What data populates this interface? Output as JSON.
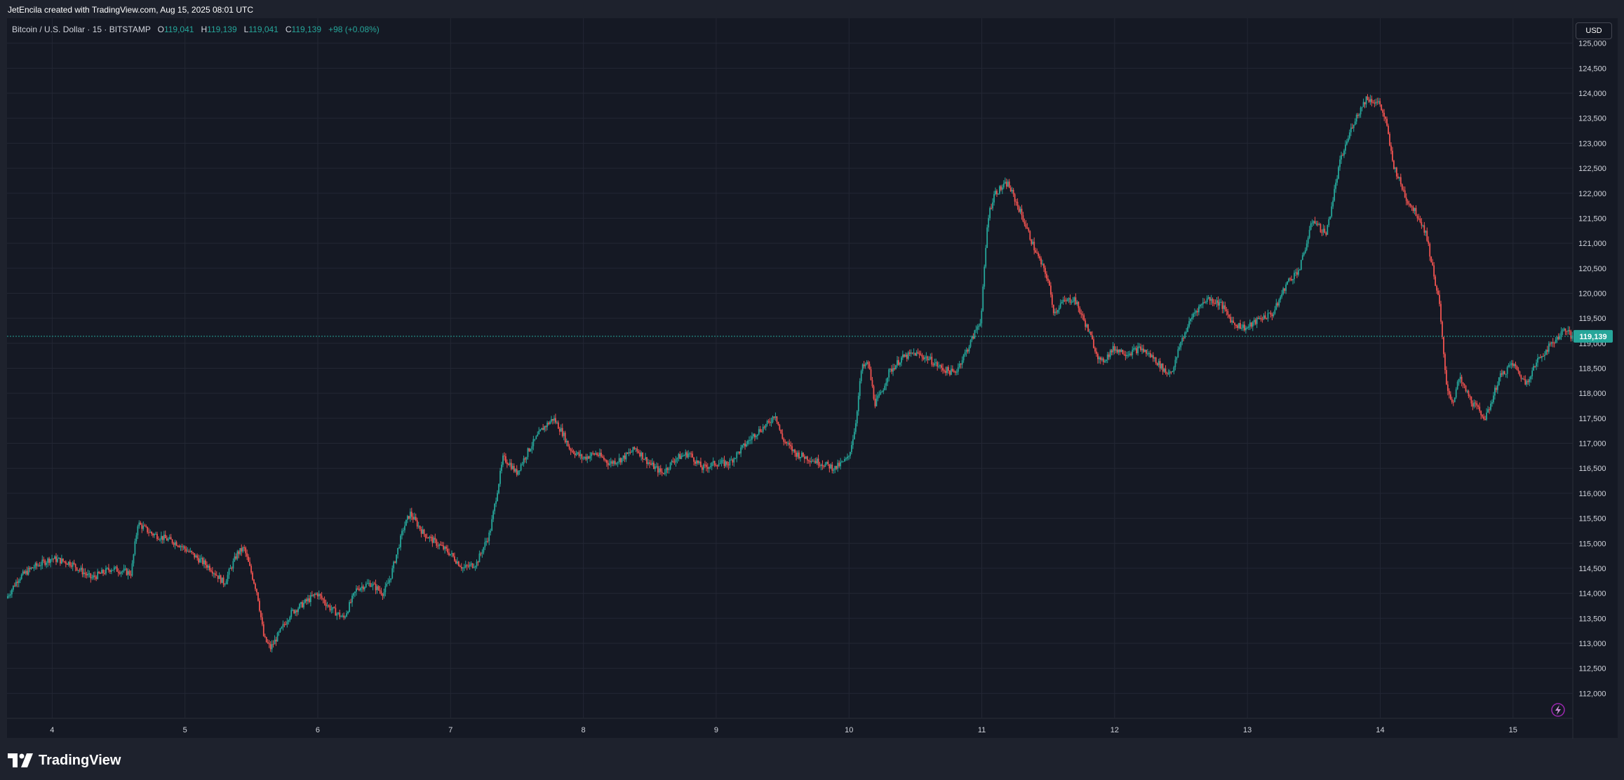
{
  "header": {
    "credit": "JetEncila created with TradingView.com, Aug 15, 2025 08:01 UTC"
  },
  "legend": {
    "symbol": "Bitcoin / U.S. Dollar · 15 · BITSTAMP",
    "o_label": "O",
    "o_value": "119,041",
    "h_label": "H",
    "h_value": "119,139",
    "l_label": "L",
    "l_value": "119,041",
    "c_label": "C",
    "c_value": "119,139",
    "change": "+98 (+0.08%)"
  },
  "currency_button": "USD",
  "price_tag": "119,139",
  "footer": {
    "brand": "TradingView"
  },
  "colors": {
    "up": "#26a69a",
    "down": "#ef5350",
    "background": "#151924",
    "grid": "#232734",
    "axis_text": "#d1d4dc"
  },
  "chart_data": {
    "type": "candlestick",
    "title": "Bitcoin / U.S. Dollar · 15 · BITSTAMP",
    "interval": "15",
    "exchange": "BITSTAMP",
    "ylim": [
      111500,
      125500
    ],
    "y_ticks": [
      112000,
      112500,
      113000,
      113500,
      114000,
      114500,
      115000,
      115500,
      116000,
      116500,
      117000,
      117500,
      118000,
      118500,
      119000,
      119500,
      120000,
      120500,
      121000,
      121500,
      122000,
      122500,
      123000,
      123500,
      124000,
      124500,
      125000
    ],
    "y_tick_labels": [
      "112,000",
      "112,500",
      "113,000",
      "113,500",
      "114,000",
      "114,500",
      "115,000",
      "115,500",
      "116,000",
      "116,500",
      "117,000",
      "117,500",
      "118,000",
      "118,500",
      "119,000",
      "119,500",
      "120,000",
      "120,500",
      "121,000",
      "121,500",
      "122,000",
      "122,500",
      "123,000",
      "123,500",
      "124,000",
      "124,500",
      "125,000"
    ],
    "x_ticks": [
      "4",
      "5",
      "6",
      "7",
      "8",
      "9",
      "10",
      "11",
      "12",
      "13",
      "14",
      "15"
    ],
    "x_tick_days": [
      4,
      5,
      6,
      7,
      8,
      9,
      10,
      11,
      12,
      13,
      14,
      15
    ],
    "x_range_days": [
      3.66,
      15.45
    ],
    "last_price": 119139,
    "trend_path": {
      "x_days": [
        3.66,
        3.75,
        3.85,
        4.0,
        4.15,
        4.3,
        4.45,
        4.6,
        4.65,
        4.75,
        4.85,
        4.95,
        5.1,
        5.2,
        5.3,
        5.4,
        5.45,
        5.55,
        5.6,
        5.65,
        5.8,
        5.9,
        6.0,
        6.1,
        6.2,
        6.3,
        6.4,
        6.5,
        6.55,
        6.6,
        6.65,
        6.7,
        6.8,
        6.9,
        7.0,
        7.1,
        7.2,
        7.3,
        7.4,
        7.45,
        7.5,
        7.6,
        7.7,
        7.78,
        7.85,
        7.9,
        8.0,
        8.1,
        8.2,
        8.3,
        8.4,
        8.5,
        8.6,
        8.7,
        8.8,
        8.9,
        9.0,
        9.1,
        9.2,
        9.3,
        9.4,
        9.45,
        9.5,
        9.6,
        9.7,
        9.8,
        9.9,
        10.0,
        10.05,
        10.1,
        10.15,
        10.2,
        10.25,
        10.3,
        10.4,
        10.5,
        10.6,
        10.7,
        10.8,
        10.9,
        10.95,
        11.0,
        11.05,
        11.1,
        11.2,
        11.3,
        11.4,
        11.5,
        11.55,
        11.6,
        11.7,
        11.8,
        11.9,
        12.0,
        12.1,
        12.2,
        12.3,
        12.4,
        12.45,
        12.5,
        12.6,
        12.7,
        12.8,
        12.9,
        13.0,
        13.1,
        13.2,
        13.3,
        13.4,
        13.5,
        13.55,
        13.6,
        13.7,
        13.8,
        13.9,
        14.0,
        14.05,
        14.1,
        14.2,
        14.3,
        14.35,
        14.4,
        14.45,
        14.5,
        14.55,
        14.6,
        14.7,
        14.8,
        14.9,
        15.0,
        15.1,
        15.2,
        15.3,
        15.4,
        15.45
      ],
      "close": [
        113900,
        114300,
        114500,
        114700,
        114600,
        114300,
        114500,
        114400,
        115400,
        115200,
        115100,
        115000,
        114700,
        114500,
        114200,
        114800,
        114900,
        114000,
        113100,
        112900,
        113600,
        113800,
        114000,
        113700,
        113500,
        114100,
        114200,
        114000,
        114300,
        114800,
        115300,
        115600,
        115200,
        115000,
        114800,
        114500,
        114600,
        115200,
        116700,
        116600,
        116400,
        116900,
        117300,
        117500,
        117200,
        116900,
        116700,
        116800,
        116600,
        116700,
        116900,
        116600,
        116400,
        116700,
        116800,
        116500,
        116600,
        116600,
        116900,
        117200,
        117400,
        117600,
        117100,
        116800,
        116700,
        116600,
        116500,
        116700,
        117300,
        118500,
        118600,
        117800,
        118000,
        118400,
        118700,
        118800,
        118700,
        118500,
        118400,
        118900,
        119200,
        119500,
        121500,
        122000,
        122200,
        121600,
        120900,
        120300,
        119600,
        119800,
        119900,
        119300,
        118600,
        118900,
        118800,
        118900,
        118700,
        118400,
        118500,
        119000,
        119600,
        119900,
        119800,
        119400,
        119300,
        119500,
        119600,
        120200,
        120500,
        121500,
        121300,
        121200,
        122600,
        123400,
        123900,
        123800,
        123400,
        122600,
        121900,
        121500,
        121200,
        120500,
        119800,
        118200,
        117800,
        118300,
        117800,
        117500,
        118300,
        118600,
        118200,
        118700,
        119000,
        119300,
        119100
      ]
    }
  }
}
